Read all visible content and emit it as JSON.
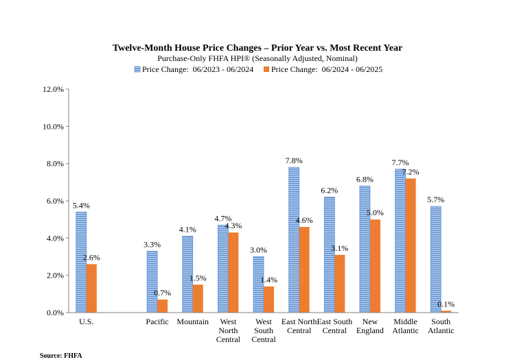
{
  "chart_data": {
    "type": "bar",
    "title": "Twelve-Month House Price Changes – Prior Year vs. Most Recent Year",
    "subtitle": "Purchase-Only FHFA HPI® (Seasonally Adjusted, Nominal)",
    "categories": [
      [
        "U.S."
      ],
      [
        ""
      ],
      [
        "Pacific"
      ],
      [
        "Mountain"
      ],
      [
        "West",
        "North",
        "Central"
      ],
      [
        "West",
        "South",
        "Central"
      ],
      [
        "East North",
        "Central"
      ],
      [
        "East South",
        "Central"
      ],
      [
        "New",
        "England"
      ],
      [
        "Middle",
        "Atlantic"
      ],
      [
        "South",
        "Atlantic"
      ]
    ],
    "series": [
      {
        "name": "Price Change:  06/2023 - 06/2024",
        "color": "#8FB4E3",
        "pattern": "horizontal-stripes",
        "values": [
          5.4,
          null,
          3.3,
          4.1,
          4.7,
          3.0,
          7.8,
          6.2,
          6.8,
          7.7,
          5.7
        ],
        "labels": [
          "5.4%",
          "",
          "3.3%",
          "4.1%",
          "4.7%",
          "3.0%",
          "7.8%",
          "6.2%",
          "6.8%",
          "7.7%",
          "5.7%"
        ]
      },
      {
        "name": "Price Change:  06/2024 - 06/2025",
        "color": "#ED7D31",
        "pattern": "solid",
        "values": [
          2.6,
          null,
          0.7,
          1.5,
          4.3,
          1.4,
          4.6,
          3.1,
          5.0,
          7.2,
          0.1
        ],
        "labels": [
          "2.6%",
          "",
          "0.7%",
          "1.5%",
          "4.3%",
          "1.4%",
          "4.6%",
          "3.1%",
          "5.0%",
          "7.2%",
          "0.1%"
        ]
      }
    ],
    "ylim": [
      0,
      12
    ],
    "yticks": [
      0,
      2,
      4,
      6,
      8,
      10,
      12
    ],
    "ytick_labels": [
      "0.0%",
      "2.0%",
      "4.0%",
      "6.0%",
      "8.0%",
      "10.0%",
      "12.0%"
    ],
    "xlabel": "",
    "ylabel": "",
    "grid": false,
    "legend_position": "top"
  },
  "source": "Source: FHFA"
}
